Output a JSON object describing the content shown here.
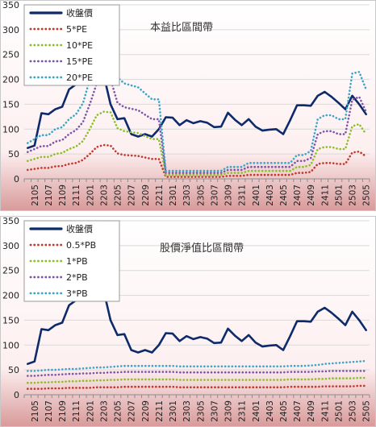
{
  "chart_data": [
    {
      "type": "line",
      "title": "本益比區間帶",
      "ylim": [
        0,
        350
      ],
      "yticks": [
        0,
        50,
        100,
        150,
        200,
        250,
        300,
        350
      ],
      "grid": true,
      "legend_position": "top-left",
      "x_tick_labels": [
        "2105",
        "2107",
        "2109",
        "2111",
        "2201",
        "2203",
        "2205",
        "2207",
        "2209",
        "2211",
        "2301",
        "2303",
        "2305",
        "2307",
        "2309",
        "2311",
        "2401",
        "2403",
        "2405",
        "2407",
        "2409",
        "2411",
        "2501",
        "2503",
        "2505"
      ],
      "x_count": 50,
      "series": [
        {
          "name": "收盤價",
          "color": "#0d2a6b",
          "style": "solid",
          "values": [
            62,
            67,
            132,
            130,
            140,
            145,
            180,
            190,
            200,
            199,
            205,
            210,
            150,
            120,
            122,
            90,
            85,
            90,
            85,
            100,
            124,
            123,
            108,
            118,
            112,
            116,
            113,
            104,
            105,
            133,
            119,
            108,
            120,
            105,
            97,
            99,
            100,
            90,
            118,
            148,
            148,
            147,
            167,
            175,
            165,
            153,
            140,
            167,
            150,
            130
          ]
        },
        {
          "name": "5*PE",
          "color": "#c0392b",
          "style": "dotted",
          "values": [
            18,
            20,
            22,
            22,
            25,
            26,
            30,
            32,
            38,
            50,
            64,
            68,
            67,
            51,
            48,
            47,
            46,
            43,
            40,
            40,
            4,
            4,
            4,
            4,
            4,
            4,
            4,
            4,
            4,
            6,
            6,
            6,
            8,
            8,
            8,
            8,
            8,
            8,
            8,
            12,
            12,
            14,
            30,
            32,
            32,
            30,
            30,
            53,
            55,
            45
          ]
        },
        {
          "name": "10*PE",
          "color": "#8bbf2a",
          "style": "dotted",
          "values": [
            36,
            40,
            44,
            44,
            50,
            52,
            60,
            65,
            76,
            100,
            128,
            135,
            134,
            102,
            96,
            94,
            92,
            86,
            80,
            80,
            8,
            8,
            8,
            8,
            8,
            8,
            8,
            8,
            8,
            12,
            12,
            12,
            16,
            16,
            16,
            16,
            16,
            16,
            16,
            24,
            24,
            28,
            60,
            64,
            64,
            60,
            60,
            106,
            110,
            90
          ]
        },
        {
          "name": "15*PE",
          "color": "#7d55a8",
          "style": "dotted",
          "values": [
            54,
            60,
            66,
            66,
            75,
            78,
            90,
            98,
            114,
            150,
            192,
            202,
            201,
            153,
            144,
            141,
            138,
            129,
            120,
            120,
            12,
            12,
            12,
            12,
            12,
            12,
            12,
            12,
            12,
            18,
            18,
            18,
            24,
            24,
            24,
            24,
            24,
            24,
            24,
            36,
            36,
            42,
            90,
            96,
            96,
            90,
            90,
            159,
            165,
            135
          ]
        },
        {
          "name": "20*PE",
          "color": "#3aa6c6",
          "style": "dotted",
          "values": [
            72,
            80,
            88,
            88,
            100,
            104,
            120,
            130,
            152,
            200,
            256,
            270,
            268,
            204,
            192,
            188,
            184,
            172,
            160,
            160,
            16,
            16,
            16,
            16,
            16,
            16,
            16,
            16,
            16,
            24,
            24,
            24,
            32,
            32,
            32,
            32,
            32,
            32,
            32,
            48,
            48,
            56,
            120,
            128,
            128,
            120,
            120,
            212,
            215,
            180
          ]
        }
      ]
    },
    {
      "type": "line",
      "title": "股價淨值比區間帶",
      "ylim": [
        0,
        350
      ],
      "yticks": [
        0,
        50,
        100,
        150,
        200,
        250,
        300,
        350
      ],
      "grid": true,
      "legend_position": "top-left",
      "x_tick_labels": [
        "2105",
        "2107",
        "2109",
        "2111",
        "2201",
        "2203",
        "2205",
        "2207",
        "2209",
        "2211",
        "2301",
        "2303",
        "2305",
        "2307",
        "2309",
        "2311",
        "2401",
        "2403",
        "2405",
        "2407",
        "2409",
        "2411",
        "2501",
        "2503",
        "2505"
      ],
      "x_count": 50,
      "series": [
        {
          "name": "收盤價",
          "color": "#0d2a6b",
          "style": "solid",
          "values": [
            62,
            67,
            132,
            130,
            140,
            145,
            180,
            190,
            200,
            199,
            205,
            210,
            150,
            120,
            122,
            90,
            85,
            90,
            85,
            100,
            124,
            123,
            108,
            118,
            112,
            116,
            113,
            104,
            105,
            133,
            119,
            108,
            120,
            105,
            97,
            99,
            100,
            90,
            118,
            148,
            148,
            147,
            167,
            175,
            165,
            153,
            140,
            167,
            150,
            130
          ]
        },
        {
          "name": "0.5*PB",
          "color": "#c0392b",
          "style": "dotted",
          "values": [
            12,
            12,
            12,
            13,
            13,
            13,
            14,
            14,
            14,
            14,
            15,
            15,
            15,
            15,
            16,
            16,
            16,
            16,
            16,
            16,
            16,
            16,
            15,
            15,
            15,
            15,
            15,
            15,
            15,
            15,
            15,
            15,
            15,
            15,
            15,
            15,
            15,
            15,
            16,
            16,
            16,
            16,
            16,
            17,
            17,
            17,
            17,
            17,
            18,
            18
          ]
        },
        {
          "name": "1*PB",
          "color": "#8bbf2a",
          "style": "dotted",
          "values": [
            24,
            24,
            25,
            25,
            26,
            26,
            27,
            27,
            28,
            28,
            29,
            29,
            30,
            30,
            31,
            31,
            31,
            31,
            31,
            31,
            31,
            31,
            30,
            30,
            30,
            30,
            30,
            30,
            30,
            30,
            30,
            30,
            30,
            30,
            30,
            30,
            30,
            30,
            31,
            31,
            31,
            31,
            32,
            32,
            33,
            33,
            33,
            33,
            34,
            34
          ]
        },
        {
          "name": "2*PB",
          "color": "#7d55a8",
          "style": "dotted",
          "values": [
            38,
            38,
            39,
            40,
            40,
            41,
            42,
            42,
            43,
            43,
            44,
            44,
            45,
            45,
            46,
            46,
            46,
            46,
            46,
            46,
            46,
            46,
            45,
            45,
            45,
            45,
            45,
            45,
            45,
            45,
            45,
            45,
            45,
            45,
            45,
            45,
            45,
            45,
            46,
            46,
            46,
            46,
            47,
            47,
            48,
            48,
            48,
            48,
            48,
            48
          ]
        },
        {
          "name": "3*PB",
          "color": "#3aa6c6",
          "style": "dotted",
          "values": [
            48,
            48,
            49,
            50,
            50,
            51,
            52,
            52,
            53,
            54,
            55,
            55,
            56,
            57,
            58,
            58,
            58,
            58,
            58,
            58,
            58,
            58,
            57,
            57,
            57,
            57,
            57,
            57,
            57,
            57,
            57,
            57,
            57,
            57,
            57,
            57,
            57,
            57,
            58,
            58,
            58,
            59,
            60,
            62,
            63,
            64,
            65,
            66,
            67,
            68
          ]
        }
      ]
    }
  ]
}
